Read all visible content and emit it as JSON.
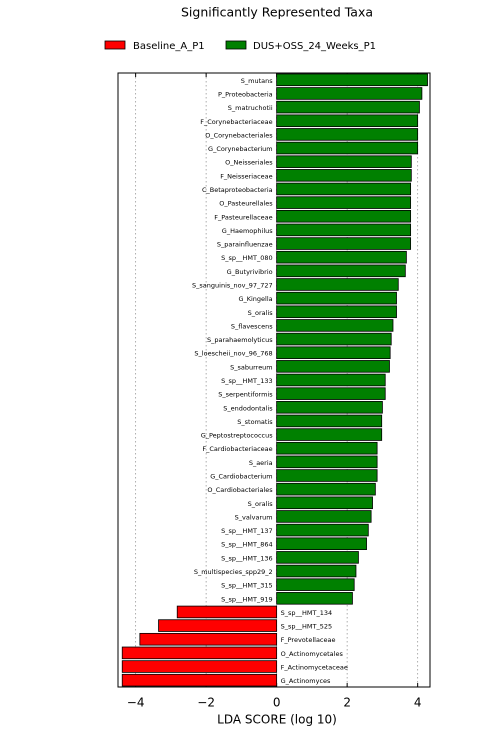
{
  "chart_data": {
    "type": "bar",
    "orientation": "horizontal",
    "title": "Significantly Represented Taxa",
    "x_label": "LDA SCORE (log 10)",
    "categories": [
      "S_mutans",
      "P_Proteobacteria",
      "S_matruchotii",
      "F_Corynebacteriaceae",
      "O_Corynebacteriales",
      "G_Corynebacterium",
      "O_Neisseriales",
      "F_Neisseriaceae",
      "C_Betaproteobacteria",
      "O_Pasteurellales",
      "F_Pasteurellaceae",
      "G_Haemophilus",
      "S_parainfluenzae",
      "S_sp__HMT_080",
      "G_Butyrivibrio",
      "S_sanguinis_nov_97_727",
      "G_Kingella",
      "S_oralis",
      "S_flavescens",
      "S_parahaemolyticus",
      "S_loescheii_nov_96_768",
      "S_saburreum",
      "S_sp__HMT_133",
      "S_serpentiformis",
      "S_endodontalis",
      "S_stomatis",
      "G_Peptostreptococcus",
      "F_Cardiobacteriaceae",
      "S_aeria",
      "G_Cardiobacterium",
      "O_Cardiobacteriales",
      "S_oralis",
      "S_valvarum",
      "S_sp__HMT_137",
      "S_sp__HMT_864",
      "S_sp__HMT_136",
      "S_multispecies_spp29_2",
      "S_sp__HMT_315",
      "S_sp__HMT_919",
      "S_sp__HMT_134",
      "S_sp__HMT_525",
      "F_Prevotellaceae",
      "O_Actinomycetales",
      "F_Actinomycetaceae",
      "G_Actinomyces"
    ],
    "series": [
      {
        "name": "Baseline_A_P1",
        "color": "#ff0000",
        "values": [
          null,
          null,
          null,
          null,
          null,
          null,
          null,
          null,
          null,
          null,
          null,
          null,
          null,
          null,
          null,
          null,
          null,
          null,
          null,
          null,
          null,
          null,
          null,
          null,
          null,
          null,
          null,
          null,
          null,
          null,
          null,
          null,
          null,
          null,
          null,
          null,
          null,
          null,
          null,
          -2.82,
          -3.35,
          -3.88,
          -4.38,
          -4.38,
          -4.38
        ]
      },
      {
        "name": "DUS+OSS_24_Weeks_P1",
        "color": "#008000",
        "values": [
          4.28,
          4.12,
          4.05,
          4.0,
          4.0,
          4.0,
          3.82,
          3.82,
          3.8,
          3.8,
          3.8,
          3.8,
          3.8,
          3.68,
          3.65,
          3.45,
          3.4,
          3.4,
          3.3,
          3.25,
          3.22,
          3.2,
          3.08,
          3.08,
          3.0,
          2.98,
          2.98,
          2.85,
          2.85,
          2.85,
          2.8,
          2.72,
          2.68,
          2.6,
          2.55,
          2.32,
          2.25,
          2.2,
          2.15,
          null,
          null,
          null,
          null,
          null,
          null
        ]
      }
    ],
    "xlim": [
      -4.5,
      4.35
    ],
    "xticks": [
      {
        "value": -4,
        "label": "−4"
      },
      {
        "value": -2,
        "label": "−2"
      },
      0,
      2,
      4
    ],
    "grid": true
  }
}
